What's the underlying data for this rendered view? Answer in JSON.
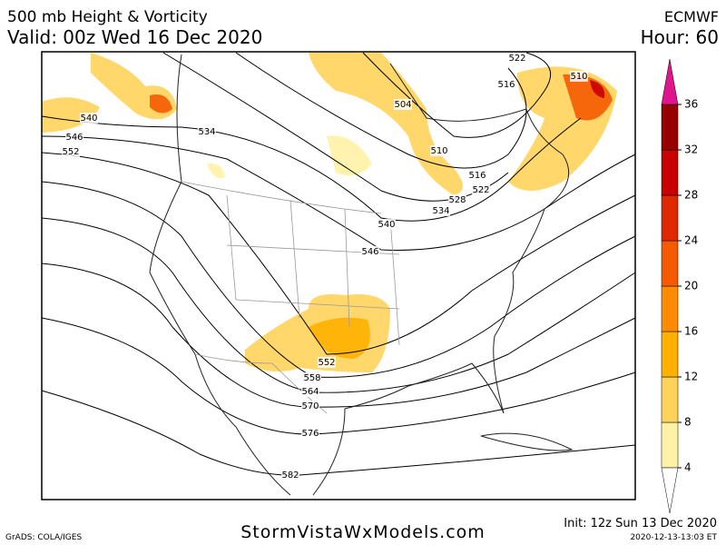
{
  "header": {
    "title": "500 mb Height & Vorticity",
    "valid": "Valid: 00z Wed 16 Dec 2020",
    "model": "ECMWF",
    "hour": "Hour: 60"
  },
  "map": {
    "contour_labels": [
      522,
      516,
      510,
      504,
      510,
      516,
      522,
      528,
      534,
      540,
      546,
      540,
      546,
      552,
      534,
      552,
      558,
      564,
      570,
      576,
      582
    ]
  },
  "colorbar": {
    "ticks": [
      4,
      8,
      12,
      16,
      20,
      24,
      28,
      32,
      36
    ],
    "colors": [
      "#fff2a6",
      "#ffd35a",
      "#ffb000",
      "#ff8c00",
      "#f55a00",
      "#e02800",
      "#c80000",
      "#980000"
    ],
    "over_color": "#e0148c"
  },
  "footer": {
    "site": "StormVistaWxModels.com",
    "init": "Init: 12z Sun 13 Dec 2020",
    "stamp": "2020-12-13-13:03 ET",
    "credit": "GrADS: COLA/IGES"
  }
}
